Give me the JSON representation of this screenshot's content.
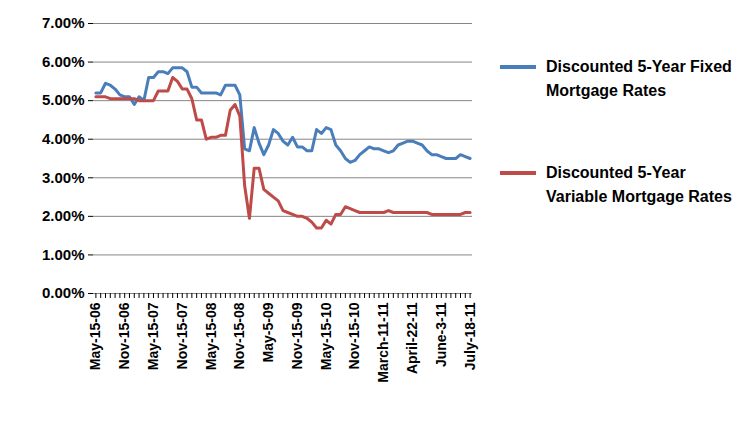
{
  "chart_data": {
    "type": "line",
    "categories": [
      "May-15-06",
      null,
      null,
      null,
      null,
      null,
      "Nov-15-06",
      null,
      null,
      null,
      null,
      null,
      "May-15-07",
      null,
      null,
      null,
      null,
      null,
      "Nov-15-07",
      null,
      null,
      null,
      null,
      null,
      "May-15-08",
      null,
      null,
      null,
      null,
      null,
      "Nov-15-08",
      null,
      null,
      null,
      null,
      null,
      "May-5-09",
      null,
      null,
      null,
      null,
      null,
      "Nov-15-09",
      null,
      null,
      null,
      null,
      null,
      "May-15-10",
      null,
      null,
      null,
      null,
      null,
      "Nov-15-10",
      null,
      null,
      null,
      null,
      null,
      "March-11-11",
      null,
      null,
      null,
      null,
      null,
      "April-22-11",
      null,
      null,
      null,
      null,
      null,
      "June-3-11",
      null,
      null,
      null,
      null,
      null,
      "July-18-11"
    ],
    "series": [
      {
        "name": "Discounted 5-Year Fixed Mortgage Rates",
        "color": "#4a7ebb",
        "values": [
          5.2,
          5.2,
          5.45,
          5.4,
          5.3,
          5.15,
          5.1,
          5.1,
          4.9,
          5.1,
          5.0,
          5.6,
          5.6,
          5.75,
          5.75,
          5.7,
          5.85,
          5.85,
          5.85,
          5.75,
          5.35,
          5.35,
          5.2,
          5.2,
          5.2,
          5.2,
          5.15,
          5.4,
          5.4,
          5.4,
          5.15,
          3.75,
          3.7,
          4.3,
          3.9,
          3.6,
          3.85,
          4.25,
          4.15,
          3.95,
          3.85,
          4.05,
          3.8,
          3.8,
          3.7,
          3.7,
          4.25,
          4.15,
          4.3,
          4.25,
          3.85,
          3.7,
          3.5,
          3.4,
          3.45,
          3.6,
          3.7,
          3.8,
          3.75,
          3.75,
          3.7,
          3.65,
          3.7,
          3.85,
          3.9,
          3.95,
          3.95,
          3.9,
          3.85,
          3.7,
          3.6,
          3.6,
          3.55,
          3.5,
          3.5,
          3.5,
          3.6,
          3.55,
          3.5
        ]
      },
      {
        "name": "Discounted 5-Year Variable Mortgage Rates",
        "color": "#be4b48",
        "values": [
          5.1,
          5.1,
          5.1,
          5.05,
          5.05,
          5.05,
          5.05,
          5.05,
          5.05,
          5.0,
          5.0,
          5.0,
          5.0,
          5.25,
          5.25,
          5.25,
          5.6,
          5.5,
          5.3,
          5.3,
          5.05,
          4.5,
          4.5,
          4.0,
          4.05,
          4.05,
          4.1,
          4.1,
          4.75,
          4.9,
          4.6,
          2.8,
          1.95,
          3.25,
          3.25,
          2.7,
          2.6,
          2.5,
          2.4,
          2.15,
          2.1,
          2.05,
          2.0,
          2.0,
          1.95,
          1.85,
          1.7,
          1.7,
          1.9,
          1.8,
          2.05,
          2.05,
          2.25,
          2.2,
          2.15,
          2.1,
          2.1,
          2.1,
          2.1,
          2.1,
          2.1,
          2.15,
          2.1,
          2.1,
          2.1,
          2.1,
          2.1,
          2.1,
          2.1,
          2.1,
          2.05,
          2.05,
          2.05,
          2.05,
          2.05,
          2.05,
          2.05,
          2.1,
          2.1
        ]
      }
    ],
    "ylim": [
      0,
      7
    ],
    "yticks": [
      {
        "value": 0,
        "label": "0.00%"
      },
      {
        "value": 1,
        "label": "1.00%"
      },
      {
        "value": 2,
        "label": "2.00%"
      },
      {
        "value": 3,
        "label": "3.00%"
      },
      {
        "value": 4,
        "label": "4.00%"
      },
      {
        "value": 5,
        "label": "5.00%"
      },
      {
        "value": 6,
        "label": "6.00%"
      },
      {
        "value": 7,
        "label": "7.00%"
      }
    ],
    "grid": true,
    "legend": "right"
  }
}
